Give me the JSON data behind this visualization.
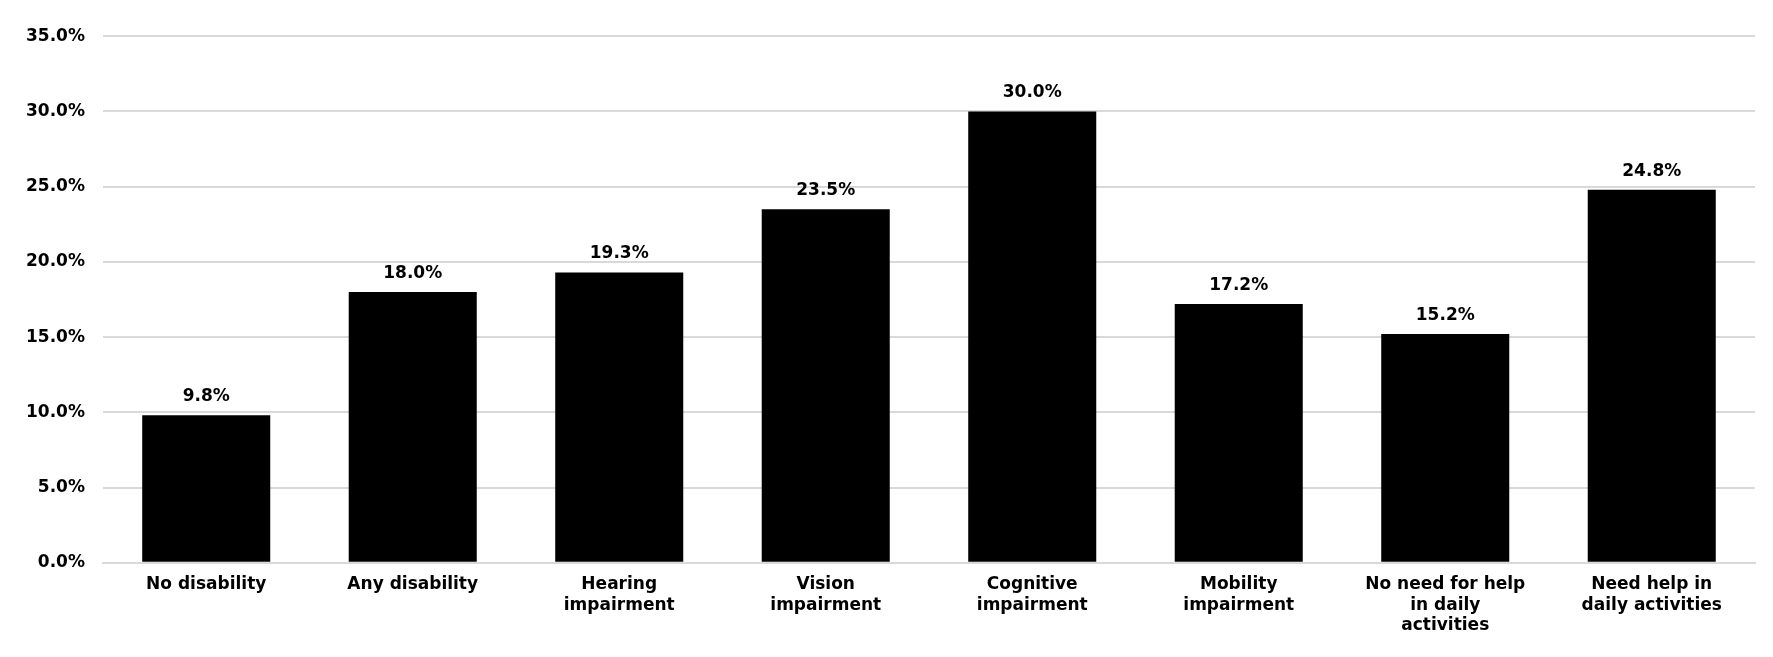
{
  "chart_data": {
    "type": "bar",
    "categories": [
      "No disability",
      "Any disability",
      "Hearing impairment",
      "Vision impairment",
      "Cognitive impairment",
      "Mobility impairment",
      "No need for help in daily activities",
      "Need help in daily activities"
    ],
    "values": [
      9.8,
      18.0,
      19.3,
      23.5,
      30.0,
      17.2,
      15.2,
      24.8
    ],
    "value_labels": [
      "9.8%",
      "18.0%",
      "19.3%",
      "23.5%",
      "30.0%",
      "17.2%",
      "15.2%",
      "24.8%"
    ],
    "color": "#000000",
    "ylim": [
      0,
      35
    ],
    "yticks": [
      {
        "value": 0,
        "label": "0.0%"
      },
      {
        "value": 5,
        "label": "5.0%"
      },
      {
        "value": 10,
        "label": "10.0%"
      },
      {
        "value": 15,
        "label": "15.0%"
      },
      {
        "value": 20,
        "label": "20.0%"
      },
      {
        "value": 25,
        "label": "25.0%"
      },
      {
        "value": 30,
        "label": "30.0%"
      },
      {
        "value": 35,
        "label": "35.0%"
      }
    ],
    "grid": "y",
    "legend": false
  }
}
